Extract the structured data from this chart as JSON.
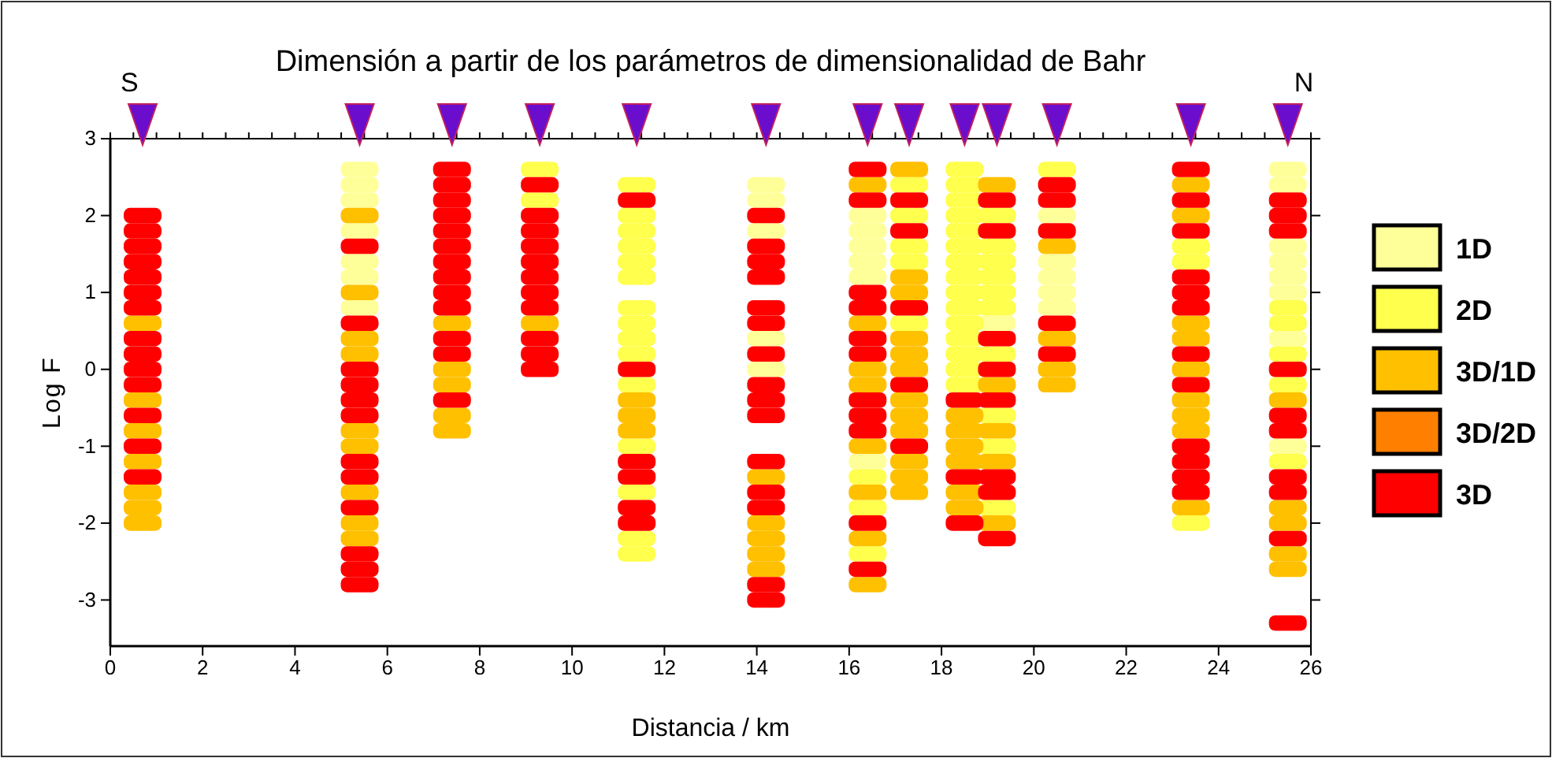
{
  "chart_data": {
    "type": "scatter",
    "title": "Dimensión a partir de los parámetros de dimensionalidad de Bahr",
    "xlabel": "Distancia / km",
    "ylabel": "Log F",
    "annotations": [
      "S",
      "N"
    ],
    "xlim": [
      0,
      26
    ],
    "xticks": [
      0,
      2,
      4,
      6,
      8,
      10,
      12,
      14,
      16,
      18,
      20,
      22,
      24,
      26
    ],
    "ylim": [
      -3.6,
      3
    ],
    "yticks": [
      -3,
      -2,
      -1,
      0,
      1,
      2,
      3
    ],
    "grid": false,
    "legend": "right",
    "marker": "square",
    "series": [
      {
        "name": "1D",
        "color": "#ffff99",
        "x": [
          5.4,
          5.4,
          5.4,
          5.4,
          5.4,
          5.4,
          5.4,
          14.2,
          14.2,
          14.2,
          14.2,
          14.2,
          16.4,
          16.4,
          16.4,
          16.4,
          16.4,
          16.4,
          19.2,
          20.5,
          20.5,
          20.5,
          20.5,
          20.5,
          25.5,
          25.5,
          25.5,
          25.5,
          25.5,
          25.5,
          25.5,
          25.5
        ],
        "values": [
          2.6,
          2.4,
          2.2,
          1.8,
          1.4,
          1.2,
          0.8,
          2.4,
          2.2,
          1.8,
          0.4,
          0.0,
          2.0,
          1.8,
          1.6,
          1.4,
          1.2,
          -1.2,
          0.6,
          2.0,
          1.4,
          1.2,
          1.0,
          0.8,
          2.6,
          2.4,
          1.6,
          1.4,
          1.2,
          1.0,
          0.4,
          -1.0
        ]
      },
      {
        "name": "2D",
        "color": "#ffff4d",
        "x": [
          9.3,
          9.3,
          11.4,
          11.4,
          11.4,
          11.4,
          11.4,
          11.4,
          11.4,
          11.4,
          11.4,
          11.4,
          11.4,
          11.4,
          11.4,
          11.4,
          11.4,
          16.4,
          16.4,
          16.4,
          17.3,
          17.3,
          17.3,
          17.3,
          17.3,
          18.5,
          18.5,
          18.5,
          18.5,
          18.5,
          18.5,
          18.5,
          18.5,
          18.5,
          18.5,
          18.5,
          18.5,
          18.5,
          18.5,
          18.5,
          19.2,
          19.2,
          19.2,
          19.2,
          19.2,
          19.2,
          19.2,
          19.2,
          19.2,
          19.2,
          20.5,
          23.4,
          23.4,
          23.4,
          25.5,
          25.5,
          25.5,
          25.5,
          25.5
        ],
        "values": [
          2.6,
          2.2,
          2.4,
          2.0,
          1.8,
          1.6,
          1.4,
          1.2,
          0.8,
          0.6,
          0.4,
          0.2,
          -0.2,
          -1.0,
          -1.6,
          -2.2,
          -2.4,
          -1.4,
          -1.8,
          -2.4,
          2.4,
          2.0,
          1.6,
          1.4,
          0.6,
          2.6,
          2.4,
          2.2,
          2.0,
          1.8,
          1.6,
          1.4,
          1.2,
          1.0,
          0.8,
          0.6,
          0.4,
          0.2,
          0.0,
          -0.2,
          2.0,
          1.6,
          1.4,
          1.2,
          1.0,
          0.8,
          0.2,
          -0.6,
          -1.0,
          -1.8,
          2.6,
          1.6,
          1.4,
          -2.0,
          0.8,
          0.6,
          0.2,
          -0.2,
          -1.2
        ]
      },
      {
        "name": "3D/1D",
        "color": "#ffc000",
        "x": [
          0.7,
          0.7,
          0.7,
          0.7,
          0.7,
          0.7,
          0.7,
          5.4,
          5.4,
          5.4,
          5.4,
          5.4,
          5.4,
          5.4,
          5.4,
          5.4,
          7.4,
          7.4,
          7.4,
          7.4,
          7.4,
          9.3,
          11.4,
          11.4,
          11.4,
          14.2,
          14.2,
          14.2,
          14.2,
          14.2,
          16.4,
          16.4,
          16.4,
          16.4,
          16.4,
          16.4,
          16.4,
          16.4,
          17.3,
          17.3,
          17.3,
          17.3,
          17.3,
          17.3,
          17.3,
          17.3,
          17.3,
          17.3,
          17.3,
          17.3,
          18.5,
          18.5,
          18.5,
          18.5,
          18.5,
          18.5,
          19.2,
          19.2,
          19.2,
          19.2,
          19.2,
          20.5,
          20.5,
          20.5,
          20.5,
          23.4,
          23.4,
          23.4,
          23.4,
          23.4,
          23.4,
          23.4,
          23.4,
          23.4,
          25.5,
          25.5,
          25.5,
          25.5,
          25.5
        ],
        "values": [
          0.6,
          -0.4,
          -0.8,
          -1.2,
          -1.6,
          -1.8,
          -2.0,
          2.0,
          1.0,
          0.4,
          0.2,
          -0.8,
          -1.0,
          -1.6,
          -2.0,
          -2.2,
          0.6,
          0.0,
          -0.2,
          -0.6,
          -0.8,
          0.6,
          -0.4,
          -0.6,
          -0.8,
          -1.4,
          -2.0,
          -2.2,
          -2.4,
          -2.6,
          2.4,
          0.6,
          0.0,
          -0.2,
          -1.0,
          -1.6,
          -2.2,
          -2.8,
          2.6,
          1.2,
          1.0,
          0.4,
          0.2,
          0.0,
          -0.4,
          -0.6,
          -0.8,
          -1.2,
          -1.4,
          -1.6,
          -0.6,
          -0.8,
          -1.0,
          -1.2,
          -1.6,
          -1.8,
          2.4,
          -0.2,
          -0.8,
          -1.2,
          -2.0,
          1.6,
          0.4,
          0.0,
          -0.2,
          2.4,
          2.0,
          0.6,
          0.4,
          0.0,
          -0.4,
          -0.6,
          -0.8,
          -1.8,
          -0.4,
          -1.8,
          -2.0,
          -2.4,
          -2.6
        ]
      },
      {
        "name": "3D/2D",
        "color": "#ff8000"
      },
      {
        "name": "3D",
        "color": "#ff0000",
        "x": [
          0.7,
          0.7,
          0.7,
          0.7,
          0.7,
          0.7,
          0.7,
          0.7,
          0.7,
          0.7,
          0.7,
          0.7,
          0.7,
          0.7,
          5.4,
          5.4,
          5.4,
          5.4,
          5.4,
          5.4,
          5.4,
          5.4,
          5.4,
          5.4,
          5.4,
          5.4,
          7.4,
          7.4,
          7.4,
          7.4,
          7.4,
          7.4,
          7.4,
          7.4,
          7.4,
          7.4,
          7.4,
          7.4,
          7.4,
          9.3,
          9.3,
          9.3,
          9.3,
          9.3,
          9.3,
          9.3,
          9.3,
          9.3,
          9.3,
          9.3,
          11.4,
          11.4,
          11.4,
          11.4,
          11.4,
          11.4,
          14.2,
          14.2,
          14.2,
          14.2,
          14.2,
          14.2,
          14.2,
          14.2,
          14.2,
          14.2,
          14.2,
          14.2,
          14.2,
          14.2,
          14.2,
          16.4,
          16.4,
          16.4,
          16.4,
          16.4,
          16.4,
          16.4,
          16.4,
          16.4,
          16.4,
          16.4,
          17.3,
          17.3,
          17.3,
          17.3,
          17.3,
          18.5,
          18.5,
          18.5,
          19.2,
          19.2,
          19.2,
          19.2,
          19.2,
          19.2,
          19.2,
          19.2,
          20.5,
          20.5,
          20.5,
          20.5,
          20.5,
          23.4,
          23.4,
          23.4,
          23.4,
          23.4,
          23.4,
          23.4,
          23.4,
          23.4,
          23.4,
          23.4,
          23.4,
          25.5,
          25.5,
          25.5,
          25.5,
          25.5,
          25.5,
          25.5,
          25.5,
          25.5,
          25.5
        ],
        "values": [
          2.0,
          1.8,
          1.6,
          1.4,
          1.2,
          1.0,
          0.8,
          0.4,
          0.2,
          0.0,
          -0.2,
          -0.6,
          -1.0,
          -1.4,
          1.6,
          0.6,
          0.0,
          -0.2,
          -0.4,
          -0.6,
          -1.2,
          -1.4,
          -1.8,
          -2.4,
          -2.6,
          -2.8,
          2.6,
          2.4,
          2.2,
          2.0,
          1.8,
          1.6,
          1.4,
          1.2,
          1.0,
          0.8,
          0.4,
          0.2,
          -0.4,
          2.4,
          2.0,
          1.8,
          1.6,
          1.4,
          1.2,
          1.0,
          0.8,
          0.4,
          0.2,
          0.0,
          2.2,
          0.0,
          -1.2,
          -1.4,
          -1.8,
          -2.0,
          2.0,
          1.6,
          1.4,
          1.2,
          0.8,
          0.6,
          0.2,
          -0.2,
          -0.4,
          -0.6,
          -1.2,
          -1.6,
          -1.8,
          -2.8,
          -3.0,
          2.6,
          2.2,
          1.0,
          0.8,
          0.4,
          0.2,
          -0.4,
          -0.6,
          -0.8,
          -2.0,
          -2.6,
          2.2,
          1.8,
          0.8,
          -0.2,
          -1.0,
          -0.4,
          -1.4,
          -2.0,
          2.2,
          1.8,
          0.4,
          0.0,
          -0.4,
          -1.4,
          -1.6,
          -2.2,
          2.4,
          2.2,
          1.8,
          0.6,
          0.2,
          2.6,
          2.2,
          1.8,
          1.2,
          1.0,
          0.8,
          0.2,
          -0.2,
          -1.0,
          -1.2,
          -1.4,
          -1.6,
          2.2,
          2.0,
          1.8,
          0.0,
          -0.6,
          -0.8,
          -1.4,
          -1.6,
          -2.2,
          -3.3
        ]
      }
    ]
  }
}
